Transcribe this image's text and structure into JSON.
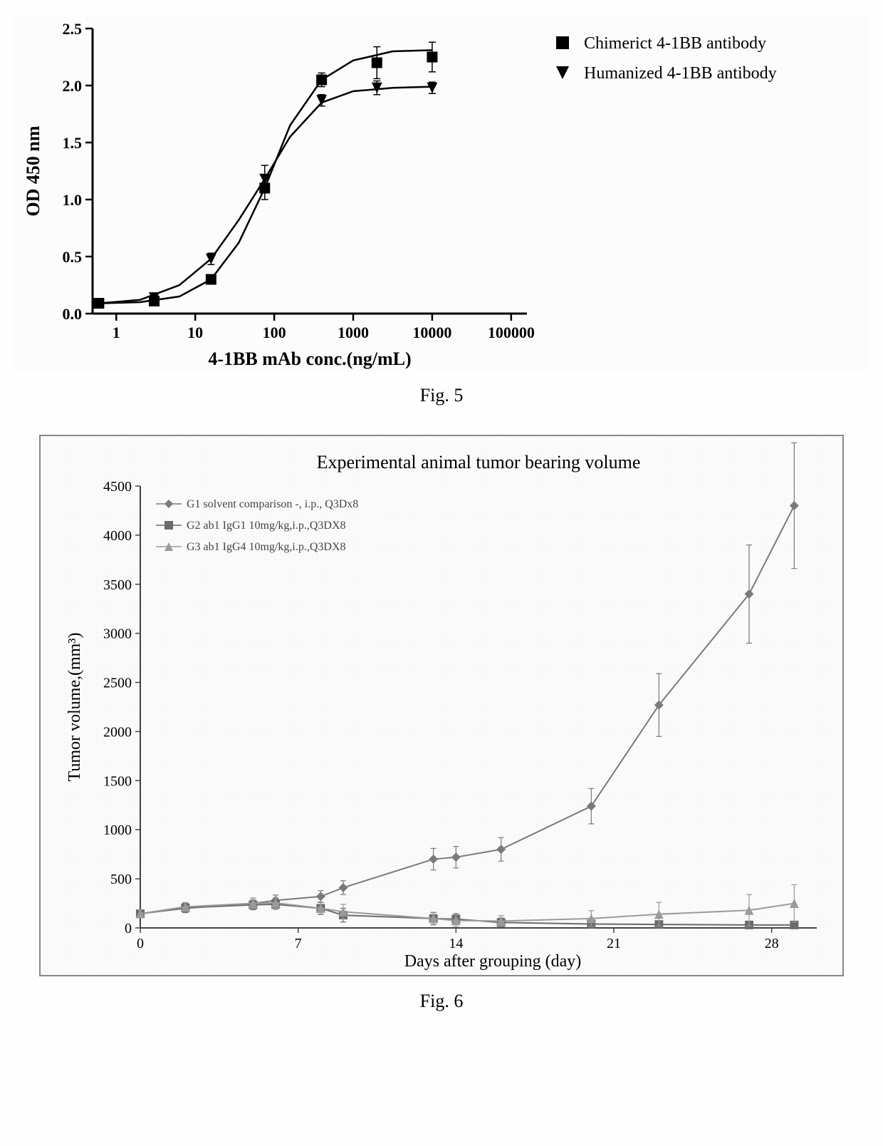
{
  "fig5": {
    "caption": "Fig. 5",
    "type": "line-scatter-logx",
    "xlabel": "4-1BB mAb conc.(ng/mL)",
    "ylabel": "OD 450 nm",
    "xlabel_fontsize": 26,
    "ylabel_fontsize": 26,
    "tick_fontsize": 22,
    "legend_fontsize": 24,
    "ylim": [
      0,
      2.5
    ],
    "ytick_step": 0.5,
    "yticks": [
      "0.0",
      "0.5",
      "1.0",
      "1.5",
      "2.0",
      "2.5"
    ],
    "xticks_log": [
      0,
      1,
      2,
      3,
      4,
      5
    ],
    "xtick_labels": [
      "1",
      "10",
      "100",
      "1000",
      "10000",
      "100000"
    ],
    "xlog_range": [
      -0.3,
      5.2
    ],
    "background_color": "#fcfcfc",
    "axis_color": "#000000",
    "series": [
      {
        "name": "Chimerict 4-1BB antibody",
        "marker": "square",
        "marker_size": 11,
        "color": "#000000",
        "line_color": "#000000",
        "line_width": 2.5,
        "points": [
          {
            "logx": -0.22,
            "y": 0.09,
            "err": 0.02
          },
          {
            "logx": 0.48,
            "y": 0.11,
            "err": 0.03
          },
          {
            "logx": 1.2,
            "y": 0.3,
            "err": 0.03
          },
          {
            "logx": 1.88,
            "y": 1.1,
            "err": 0.1
          },
          {
            "logx": 2.6,
            "y": 2.05,
            "err": 0.06
          },
          {
            "logx": 3.3,
            "y": 2.2,
            "err": 0.14
          },
          {
            "logx": 4.0,
            "y": 2.25,
            "err": 0.13
          }
        ],
        "curve": [
          {
            "logx": -0.22,
            "y": 0.09
          },
          {
            "logx": 0.3,
            "y": 0.1
          },
          {
            "logx": 0.8,
            "y": 0.15
          },
          {
            "logx": 1.2,
            "y": 0.3
          },
          {
            "logx": 1.55,
            "y": 0.62
          },
          {
            "logx": 1.88,
            "y": 1.1
          },
          {
            "logx": 2.2,
            "y": 1.65
          },
          {
            "logx": 2.6,
            "y": 2.05
          },
          {
            "logx": 3.0,
            "y": 2.22
          },
          {
            "logx": 3.5,
            "y": 2.3
          },
          {
            "logx": 4.0,
            "y": 2.31
          }
        ]
      },
      {
        "name": "Humanized 4-1BB antibody",
        "marker": "triangle-down",
        "marker_size": 11,
        "color": "#000000",
        "line_color": "#000000",
        "line_width": 2.5,
        "points": [
          {
            "logx": -0.22,
            "y": 0.09,
            "err": 0.02
          },
          {
            "logx": 0.48,
            "y": 0.14,
            "err": 0.03
          },
          {
            "logx": 1.2,
            "y": 0.48,
            "err": 0.05
          },
          {
            "logx": 1.88,
            "y": 1.18,
            "err": 0.12
          },
          {
            "logx": 2.6,
            "y": 1.87,
            "err": 0.05
          },
          {
            "logx": 3.3,
            "y": 1.98,
            "err": 0.06
          },
          {
            "logx": 4.0,
            "y": 1.98,
            "err": 0.05
          }
        ],
        "curve": [
          {
            "logx": -0.22,
            "y": 0.09
          },
          {
            "logx": 0.3,
            "y": 0.12
          },
          {
            "logx": 0.8,
            "y": 0.25
          },
          {
            "logx": 1.2,
            "y": 0.48
          },
          {
            "logx": 1.55,
            "y": 0.82
          },
          {
            "logx": 1.88,
            "y": 1.18
          },
          {
            "logx": 2.2,
            "y": 1.55
          },
          {
            "logx": 2.6,
            "y": 1.85
          },
          {
            "logx": 3.0,
            "y": 1.95
          },
          {
            "logx": 3.5,
            "y": 1.98
          },
          {
            "logx": 4.0,
            "y": 1.99
          }
        ]
      }
    ]
  },
  "fig6": {
    "caption": "Fig. 6",
    "type": "line-scatter",
    "title": "Experimental animal tumor bearing volume",
    "title_fontsize": 26,
    "xlabel": "Days after grouping (day)",
    "ylabel": "Tumor volume,(mm³)",
    "xlabel_fontsize": 24,
    "ylabel_fontsize": 24,
    "tick_fontsize": 20,
    "legend_fontsize": 16,
    "ylim": [
      0,
      4500
    ],
    "ytick_step": 500,
    "yticks": [
      "0",
      "500",
      "1000",
      "1500",
      "2000",
      "2500",
      "3000",
      "3500",
      "4000",
      "4500"
    ],
    "xlim": [
      0,
      30
    ],
    "xticks": [
      0,
      7,
      14,
      21,
      28
    ],
    "axis_color": "#444444",
    "line_width": 2,
    "series": [
      {
        "name": "G1 solvent comparison -, i.p., Q3Dx8",
        "marker": "diamond",
        "marker_size": 9,
        "color": "#7a7a7a",
        "points": [
          {
            "x": 0,
            "y": 145,
            "err": 40
          },
          {
            "x": 2,
            "y": 200,
            "err": 45
          },
          {
            "x": 5,
            "y": 250,
            "err": 55
          },
          {
            "x": 6,
            "y": 280,
            "err": 55
          },
          {
            "x": 8,
            "y": 320,
            "err": 60
          },
          {
            "x": 9,
            "y": 410,
            "err": 70
          },
          {
            "x": 13,
            "y": 700,
            "err": 110
          },
          {
            "x": 14,
            "y": 720,
            "err": 110
          },
          {
            "x": 16,
            "y": 800,
            "err": 120
          },
          {
            "x": 20,
            "y": 1240,
            "err": 180
          },
          {
            "x": 23,
            "y": 2270,
            "err": 320
          },
          {
            "x": 27,
            "y": 3400,
            "err": 500
          },
          {
            "x": 29,
            "y": 4300,
            "err": 640
          }
        ]
      },
      {
        "name": "G2 ab1 IgG1 10mg/kg,i.p.,Q3DX8",
        "marker": "square",
        "marker_size": 8,
        "color": "#6b6b6b",
        "points": [
          {
            "x": 0,
            "y": 145,
            "err": 40
          },
          {
            "x": 2,
            "y": 205,
            "err": 45
          },
          {
            "x": 5,
            "y": 235,
            "err": 50
          },
          {
            "x": 6,
            "y": 240,
            "err": 50
          },
          {
            "x": 8,
            "y": 200,
            "err": 60
          },
          {
            "x": 9,
            "y": 130,
            "err": 70
          },
          {
            "x": 13,
            "y": 95,
            "err": 60
          },
          {
            "x": 14,
            "y": 90,
            "err": 55
          },
          {
            "x": 16,
            "y": 55,
            "err": 45
          },
          {
            "x": 20,
            "y": 40,
            "err": 40
          },
          {
            "x": 23,
            "y": 35,
            "err": 35
          },
          {
            "x": 27,
            "y": 30,
            "err": 35
          },
          {
            "x": 29,
            "y": 30,
            "err": 35
          }
        ]
      },
      {
        "name": "G3 ab1 IgG4 10mg/kg,i.p.,Q3DX8",
        "marker": "triangle-up",
        "marker_size": 9,
        "color": "#9a9a9a",
        "points": [
          {
            "x": 0,
            "y": 145,
            "err": 40
          },
          {
            "x": 2,
            "y": 215,
            "err": 45
          },
          {
            "x": 5,
            "y": 250,
            "err": 55
          },
          {
            "x": 6,
            "y": 255,
            "err": 55
          },
          {
            "x": 8,
            "y": 200,
            "err": 65
          },
          {
            "x": 9,
            "y": 165,
            "err": 75
          },
          {
            "x": 13,
            "y": 95,
            "err": 65
          },
          {
            "x": 14,
            "y": 75,
            "err": 60
          },
          {
            "x": 16,
            "y": 70,
            "err": 55
          },
          {
            "x": 20,
            "y": 95,
            "err": 80
          },
          {
            "x": 23,
            "y": 140,
            "err": 120
          },
          {
            "x": 27,
            "y": 180,
            "err": 160
          },
          {
            "x": 29,
            "y": 250,
            "err": 190
          }
        ]
      }
    ]
  }
}
